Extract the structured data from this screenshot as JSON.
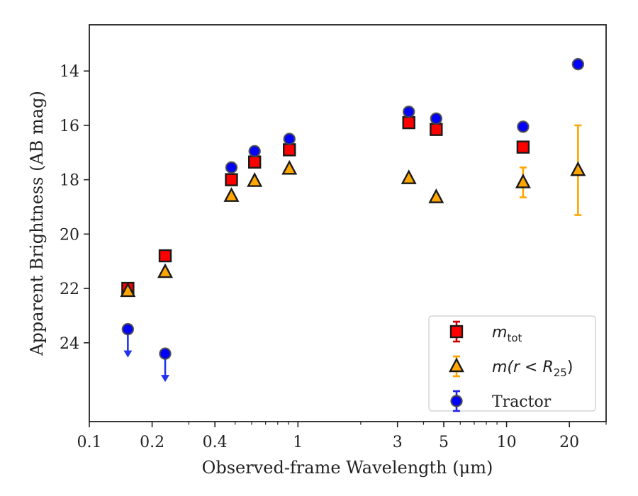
{
  "chart_data": {
    "type": "scatter",
    "xlabel": "Observed-frame Wavelength (μm)",
    "ylabel": "Apparent Brightness (AB mag)",
    "x_scale": "log",
    "xlim": [
      0.1,
      30
    ],
    "ylim": [
      26.9,
      12.3
    ],
    "y_inverted": true,
    "x_ticks": [
      {
        "value": 0.1,
        "label": "0.1"
      },
      {
        "value": 0.2,
        "label": "0.2"
      },
      {
        "value": 0.4,
        "label": "0.4"
      },
      {
        "value": 1,
        "label": "1"
      },
      {
        "value": 3,
        "label": "3"
      },
      {
        "value": 5,
        "label": "5"
      },
      {
        "value": 10,
        "label": "10"
      },
      {
        "value": 20,
        "label": "20"
      }
    ],
    "y_ticks": [
      {
        "value": 14,
        "label": "14"
      },
      {
        "value": 16,
        "label": "16"
      },
      {
        "value": 18,
        "label": "18"
      },
      {
        "value": 20,
        "label": "20"
      },
      {
        "value": 22,
        "label": "22"
      },
      {
        "value": 24,
        "label": "24"
      }
    ],
    "grid": false,
    "legend_position": "bottom-right",
    "legend": [
      {
        "name_main": "m",
        "name_sub": "tot",
        "marker": "square",
        "color": "#ff0000",
        "errcolor": "#cc0000"
      },
      {
        "name_main": "m(r < R",
        "name_sub": "25",
        "name_tail": ")",
        "marker": "triangle",
        "color": "#ffa500",
        "errcolor": "#ffa500"
      },
      {
        "name_main": "Tractor",
        "marker": "circle",
        "color": "#0000ff",
        "errcolor": "#2222ee"
      }
    ],
    "series": [
      {
        "key": "mtot",
        "marker": "square",
        "color": "#ff0000",
        "points": [
          {
            "x": 0.153,
            "y": 22.0,
            "err": 0.12
          },
          {
            "x": 0.231,
            "y": 20.8,
            "err": 0.05
          },
          {
            "x": 0.48,
            "y": 18.0,
            "err": 0
          },
          {
            "x": 0.62,
            "y": 17.35,
            "err": 0
          },
          {
            "x": 0.91,
            "y": 16.9,
            "err": 0
          },
          {
            "x": 3.4,
            "y": 15.9,
            "err": 0
          },
          {
            "x": 4.6,
            "y": 16.15,
            "err": 0
          },
          {
            "x": 12.0,
            "y": 16.8,
            "err": 0
          }
        ]
      },
      {
        "key": "mr25",
        "marker": "triangle",
        "color": "#ffa500",
        "points": [
          {
            "x": 0.153,
            "y": 22.1,
            "err": 0
          },
          {
            "x": 0.231,
            "y": 21.4,
            "err": 0
          },
          {
            "x": 0.48,
            "y": 18.6,
            "err": 0
          },
          {
            "x": 0.62,
            "y": 18.05,
            "err": 0
          },
          {
            "x": 0.91,
            "y": 17.6,
            "err": 0
          },
          {
            "x": 3.4,
            "y": 17.95,
            "err": 0
          },
          {
            "x": 4.6,
            "y": 18.65,
            "err": 0
          },
          {
            "x": 12.0,
            "y": 18.1,
            "err": 0.55
          },
          {
            "x": 22.0,
            "y": 17.65,
            "err": 1.65
          }
        ]
      },
      {
        "key": "tractor",
        "marker": "circle",
        "color": "#0000ff",
        "points": [
          {
            "x": 0.153,
            "y": 23.5,
            "upper_limit": true
          },
          {
            "x": 0.231,
            "y": 24.4,
            "upper_limit": true
          },
          {
            "x": 0.48,
            "y": 17.55
          },
          {
            "x": 0.62,
            "y": 16.95
          },
          {
            "x": 0.91,
            "y": 16.5
          },
          {
            "x": 3.4,
            "y": 15.5
          },
          {
            "x": 4.6,
            "y": 15.75
          },
          {
            "x": 12.0,
            "y": 16.05
          },
          {
            "x": 22.0,
            "y": 13.75
          }
        ]
      }
    ]
  }
}
